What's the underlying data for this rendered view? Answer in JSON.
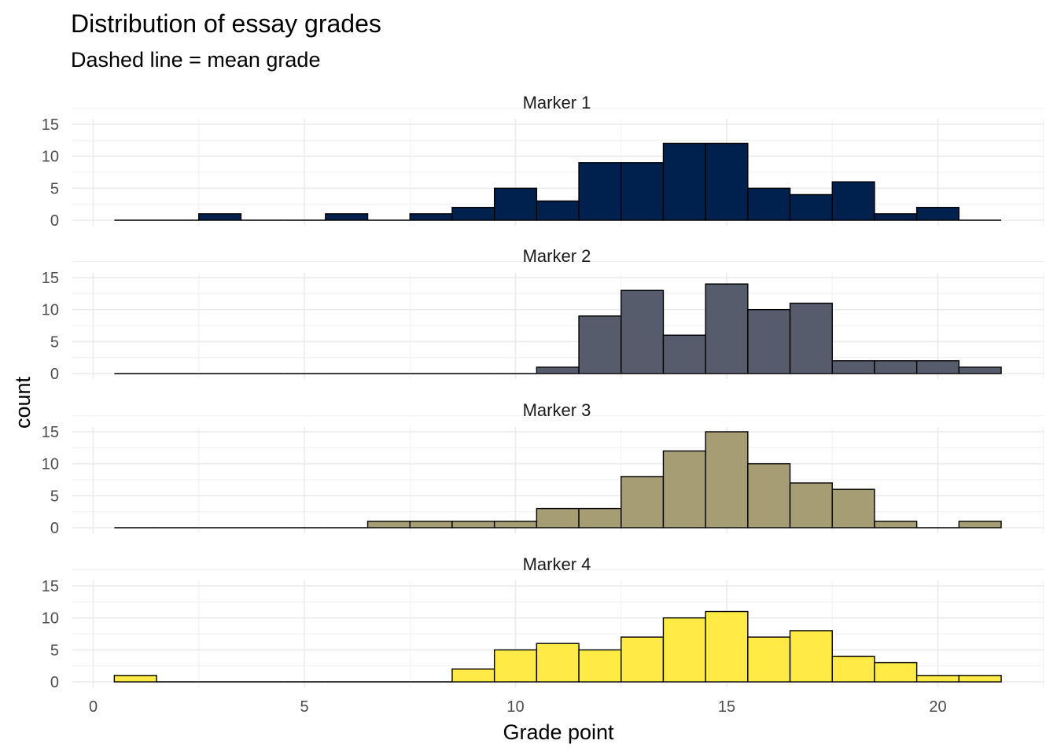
{
  "chart_data": {
    "type": "bar",
    "title": "Distribution of essay grades",
    "subtitle": "Dashed line = mean grade",
    "xlabel": "Grade point",
    "ylabel": "count",
    "xlim": [
      0,
      21.5
    ],
    "ylim": [
      0,
      15
    ],
    "x_ticks": [
      "0",
      "5",
      "10",
      "15",
      "20"
    ],
    "y_ticks": [
      "0",
      "5",
      "10",
      "15"
    ],
    "grid": true,
    "bin_centers": [
      1,
      2,
      3,
      4,
      5,
      6,
      7,
      8,
      9,
      10,
      11,
      12,
      13,
      14,
      15,
      16,
      17,
      18,
      19,
      20,
      21
    ],
    "panels": [
      {
        "label": "Marker 1",
        "color": "#00204D",
        "counts": [
          0,
          0,
          1,
          0,
          0,
          1,
          0,
          1,
          2,
          5,
          3,
          9,
          9,
          12,
          12,
          5,
          4,
          6,
          1,
          2,
          0
        ]
      },
      {
        "label": "Marker 2",
        "color": "#575C6D",
        "counts": [
          0,
          0,
          0,
          0,
          0,
          0,
          0,
          0,
          0,
          0,
          1,
          9,
          13,
          6,
          14,
          10,
          11,
          2,
          2,
          2,
          1
        ]
      },
      {
        "label": "Marker 3",
        "color": "#A69D75",
        "counts": [
          0,
          0,
          0,
          0,
          0,
          0,
          1,
          1,
          1,
          1,
          3,
          3,
          8,
          12,
          15,
          10,
          7,
          6,
          1,
          0,
          1
        ]
      },
      {
        "label": "Marker 4",
        "color": "#FFEA46",
        "counts": [
          1,
          0,
          0,
          0,
          0,
          0,
          0,
          0,
          2,
          5,
          6,
          5,
          7,
          10,
          11,
          7,
          8,
          4,
          3,
          1,
          1
        ]
      }
    ]
  }
}
